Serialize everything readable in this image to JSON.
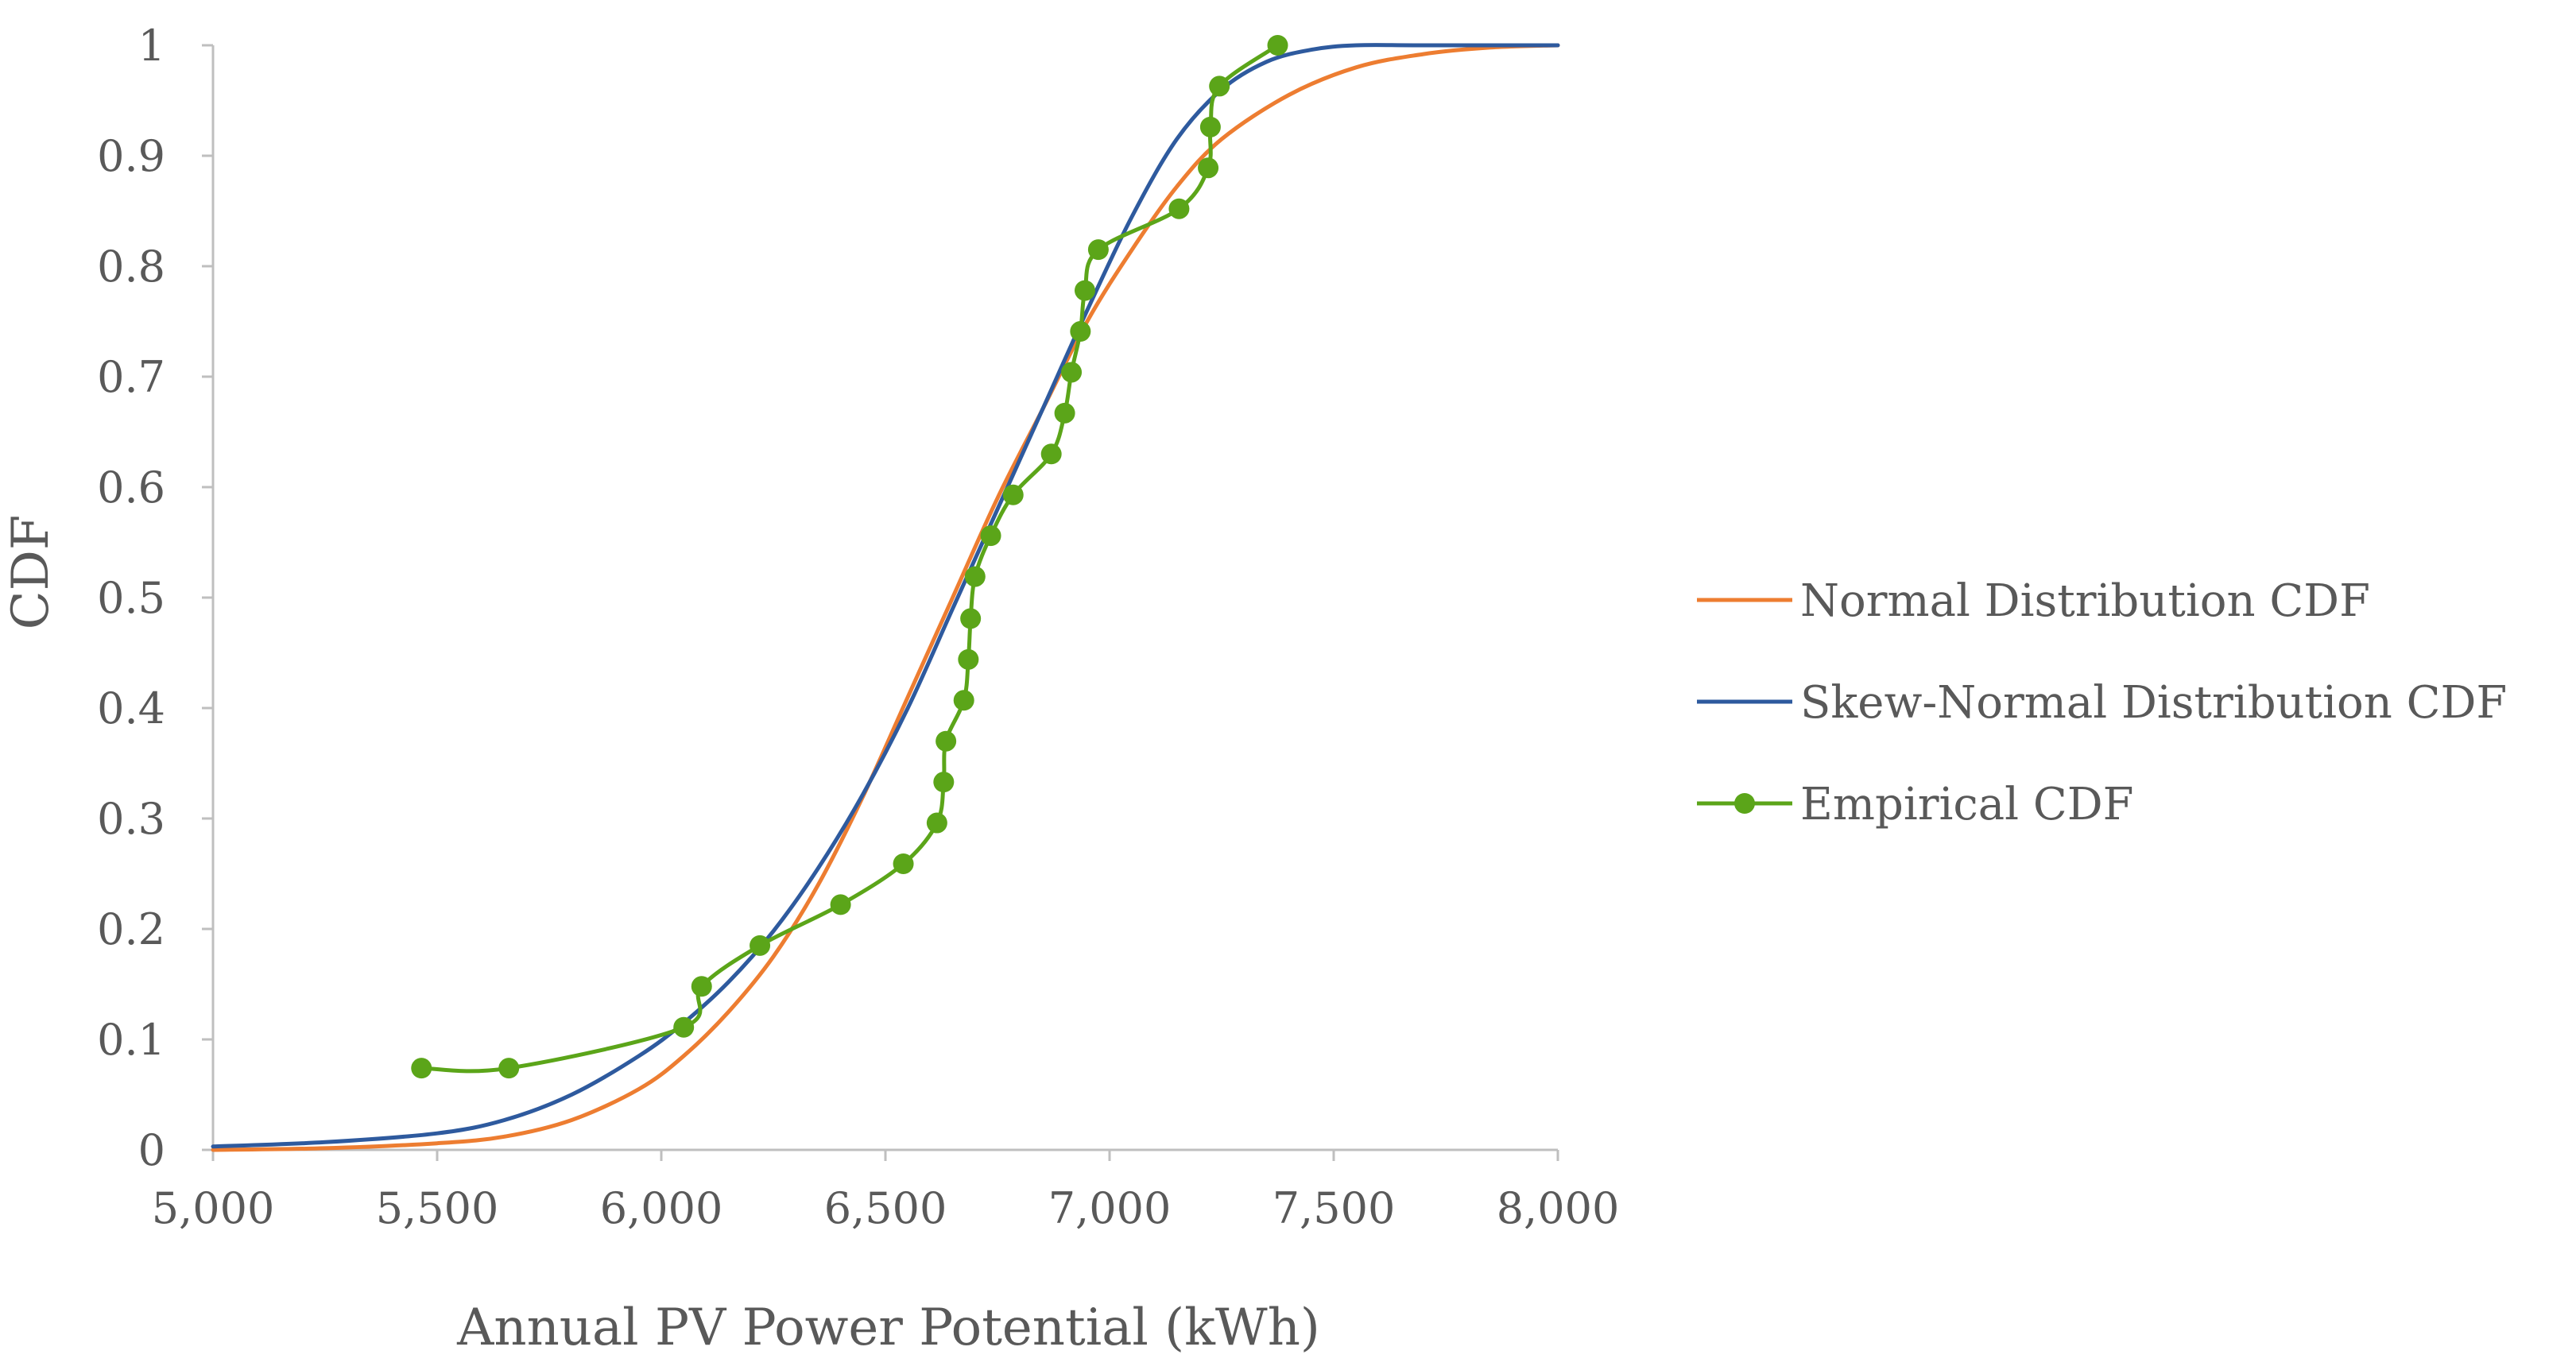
{
  "chart_data": {
    "type": "line",
    "xlabel": "Annual PV Power Potential (kWh)",
    "ylabel": "CDF",
    "xlim": [
      5000,
      8000
    ],
    "ylim": [
      0,
      1
    ],
    "x_ticks": [
      5000,
      5500,
      6000,
      6500,
      7000,
      7500,
      8000
    ],
    "x_tick_labels": [
      "5,000",
      "5,500",
      "6,000",
      "6,500",
      "7,000",
      "7,500",
      "8,000"
    ],
    "y_ticks": [
      0,
      0.1,
      0.2,
      0.3,
      0.4,
      0.5,
      0.6,
      0.7,
      0.8,
      0.9,
      1
    ],
    "y_tick_labels": [
      "0",
      "0.1",
      "0.2",
      "0.3",
      "0.4",
      "0.5",
      "0.6",
      "0.7",
      "0.8",
      "0.9",
      "1"
    ],
    "grid": false,
    "legend_position": "right",
    "series": [
      {
        "name": "Normal Distribution CDF",
        "color": "#ED7D31",
        "marker": "none",
        "x": [
          5000,
          5250,
          5500,
          5650,
          5800,
          5950,
          6050,
          6150,
          6250,
          6350,
          6450,
          6550,
          6650,
          6750,
          6850,
          6950,
          7050,
          7150,
          7250,
          7400,
          7550,
          7700,
          7850,
          8000
        ],
        "y": [
          0.0,
          0.0015,
          0.006,
          0.012,
          0.027,
          0.055,
          0.085,
          0.125,
          0.175,
          0.24,
          0.32,
          0.41,
          0.5,
          0.59,
          0.67,
          0.75,
          0.815,
          0.872,
          0.915,
          0.955,
          0.98,
          0.992,
          0.998,
          1.0
        ]
      },
      {
        "name": "Skew-Normal Distribution CDF",
        "color": "#2E5A9E",
        "marker": "none",
        "x": [
          5000,
          5250,
          5500,
          5650,
          5800,
          5950,
          6050,
          6150,
          6250,
          6350,
          6450,
          6550,
          6650,
          6750,
          6850,
          6950,
          7050,
          7150,
          7250,
          7350,
          7450,
          7550,
          7700,
          8000
        ],
        "y": [
          0.003,
          0.007,
          0.015,
          0.027,
          0.05,
          0.085,
          0.115,
          0.152,
          0.198,
          0.255,
          0.322,
          0.4,
          0.49,
          0.58,
          0.67,
          0.76,
          0.845,
          0.915,
          0.96,
          0.985,
          0.996,
          1.0,
          1.0,
          1.0
        ]
      },
      {
        "name": "Empirical CDF",
        "color": "#5BA519",
        "marker": "circle",
        "x": [
          5465,
          5660,
          6050,
          6090,
          6220,
          6400,
          6540,
          6615,
          6630,
          6635,
          6675,
          6685,
          6690,
          6700,
          6735,
          6785,
          6870,
          6900,
          6915,
          6935,
          6945,
          6975,
          7155,
          7220,
          7225,
          7245,
          7375
        ],
        "y": [
          0.074,
          0.074,
          0.111,
          0.148,
          0.185,
          0.222,
          0.259,
          0.296,
          0.333,
          0.37,
          0.407,
          0.444,
          0.481,
          0.519,
          0.556,
          0.593,
          0.63,
          0.667,
          0.704,
          0.741,
          0.778,
          0.815,
          0.852,
          0.889,
          0.926,
          0.963,
          1.0
        ]
      }
    ]
  }
}
